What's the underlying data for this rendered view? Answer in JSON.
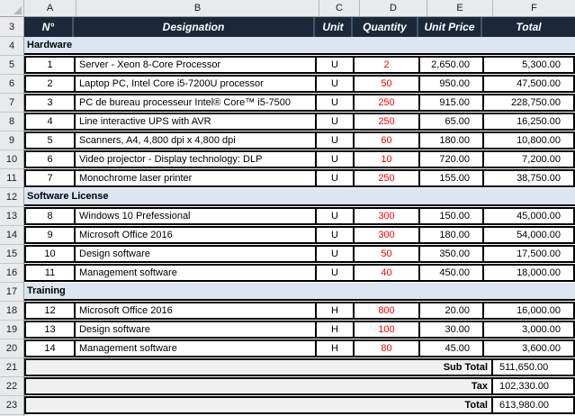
{
  "colors": {
    "header_bg": "#1a2839",
    "band_bg": "#dce6f1",
    "qty_color": "#ff0000",
    "totals_bg": "#f0f0f0",
    "gutter_bg": "#e9eaeb",
    "border": "#000000"
  },
  "sheet": {
    "column_letters": [
      "A",
      "B",
      "C",
      "D",
      "E",
      "F"
    ],
    "row_numbers": [
      "3",
      "4",
      "5",
      "6",
      "7",
      "8",
      "9",
      "10",
      "11",
      "12",
      "13",
      "14",
      "15",
      "16",
      "17",
      "18",
      "19",
      "20",
      "21",
      "22",
      "23"
    ],
    "corner_icon": "select-all-triangle"
  },
  "table": {
    "header": {
      "no": "N°",
      "designation": "Designation",
      "unit": "Unit",
      "quantity": "Quantity",
      "unit_price": "Unit Price",
      "total": "Total"
    },
    "sections": [
      {
        "title": "Hardware",
        "rows": [
          {
            "no": "1",
            "designation": "Server - Xeon 8-Core Processor",
            "unit": "U",
            "quantity": "2",
            "unit_price": "2,650.00",
            "total": "5,300.00"
          },
          {
            "no": "2",
            "designation": "Laptop PC, Intel Core i5-7200U processor",
            "unit": "U",
            "quantity": "50",
            "unit_price": "950.00",
            "total": "47,500.00"
          },
          {
            "no": "3",
            "designation": "PC de bureau processeur Intel® Core™ i5-7500",
            "unit": "U",
            "quantity": "250",
            "unit_price": "915.00",
            "total": "228,750.00"
          },
          {
            "no": "4",
            "designation": "Line interactive UPS with AVR",
            "unit": "U",
            "quantity": "250",
            "unit_price": "65.00",
            "total": "16,250.00"
          },
          {
            "no": "5",
            "designation": "Scanners, A4, 4,800 dpi x 4,800 dpi",
            "unit": "U",
            "quantity": "60",
            "unit_price": "180.00",
            "total": "10,800.00"
          },
          {
            "no": "6",
            "designation": "Video projector - Display technology: DLP",
            "unit": "U",
            "quantity": "10",
            "unit_price": "720.00",
            "total": "7,200.00"
          },
          {
            "no": "7",
            "designation": "Monochrome laser printer",
            "unit": "U",
            "quantity": "250",
            "unit_price": "155.00",
            "total": "38,750.00"
          }
        ]
      },
      {
        "title": "Software License",
        "rows": [
          {
            "no": "8",
            "designation": "Windows 10 Prefessional",
            "unit": "U",
            "quantity": "300",
            "unit_price": "150.00",
            "total": "45,000.00"
          },
          {
            "no": "9",
            "designation": "Microsoft Office 2016",
            "unit": "U",
            "quantity": "300",
            "unit_price": "180.00",
            "total": "54,000.00"
          },
          {
            "no": "10",
            "designation": "Design software",
            "unit": "U",
            "quantity": "50",
            "unit_price": "350.00",
            "total": "17,500.00"
          },
          {
            "no": "11",
            "designation": "Management software",
            "unit": "U",
            "quantity": "40",
            "unit_price": "450.00",
            "total": "18,000.00"
          }
        ]
      },
      {
        "title": "Training",
        "rows": [
          {
            "no": "12",
            "designation": "Microsoft Office 2016",
            "unit": "H",
            "quantity": "800",
            "unit_price": "20.00",
            "total": "16,000.00"
          },
          {
            "no": "13",
            "designation": "Design software",
            "unit": "H",
            "quantity": "100",
            "unit_price": "30.00",
            "total": "3,000.00"
          },
          {
            "no": "14",
            "designation": "Management software",
            "unit": "H",
            "quantity": "80",
            "unit_price": "45.00",
            "total": "3,600.00"
          }
        ]
      }
    ],
    "totals": [
      {
        "label": "Sub Total",
        "value": "511,650.00"
      },
      {
        "label": "Tax",
        "value": "102,330.00"
      },
      {
        "label": "Total",
        "value": "613,980.00"
      }
    ]
  }
}
